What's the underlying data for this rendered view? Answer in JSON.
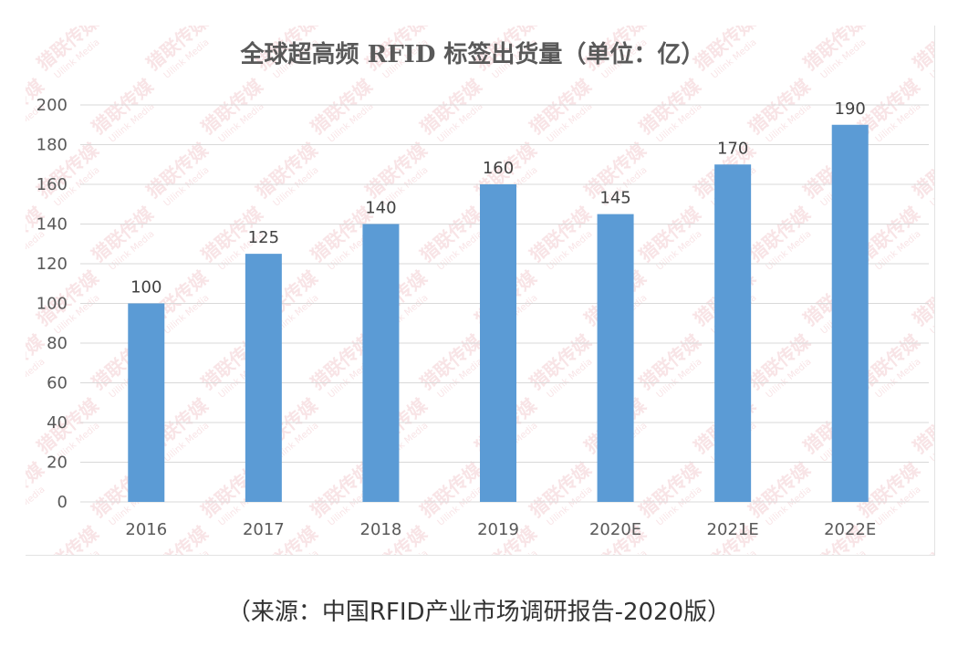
{
  "chart_data": {
    "type": "bar",
    "title": "全球超高频 RFID 标签出货量（单位：亿）",
    "categories": [
      "2016",
      "2017",
      "2018",
      "2019",
      "2020E",
      "2021E",
      "2022E"
    ],
    "values": [
      100,
      125,
      140,
      160,
      145,
      170,
      190
    ],
    "yticks": [
      "0",
      "20",
      "40",
      "60",
      "80",
      "100",
      "120",
      "140",
      "160",
      "180",
      "200"
    ],
    "ylim": [
      0,
      200
    ],
    "xlabel": "",
    "ylabel": "",
    "grid": true,
    "legend": "none",
    "bar_color": "#5b9bd5",
    "grid_color": "#d9d9d9"
  },
  "watermark": {
    "text": "猎联传媒",
    "subtext": "Uilink Media",
    "color": "#e8a0a8"
  },
  "source_note": "（来源：中国RFID产业市场调研报告-2020版）"
}
